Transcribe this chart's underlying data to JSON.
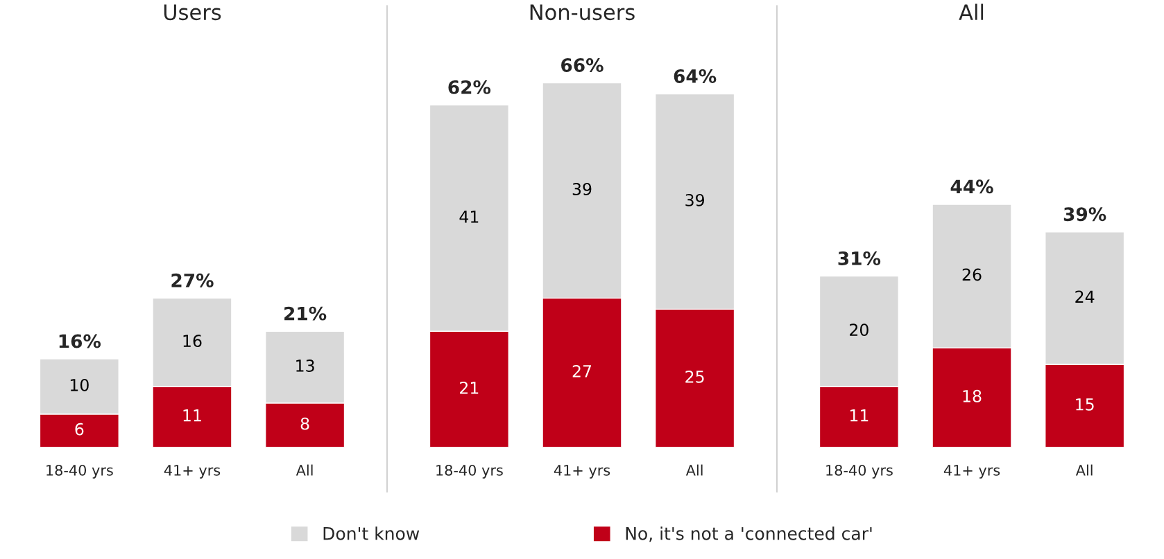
{
  "chart_data": [
    {
      "type": "bar",
      "title": "Users",
      "categories": [
        "18-40 yrs",
        "41+ yrs",
        "All"
      ],
      "stacked": true,
      "data_labels": true,
      "totals": [
        "16%",
        "27%",
        "21%"
      ],
      "legend": "bottom",
      "series": [
        {
          "name": "No, it's not a 'connected car'",
          "color": "#c00018",
          "values": [
            6,
            11,
            8
          ]
        },
        {
          "name": "Don't know",
          "color": "#d9d9d9",
          "values": [
            10,
            16,
            13
          ]
        }
      ]
    },
    {
      "type": "bar",
      "title": "Non-users",
      "categories": [
        "18-40 yrs",
        "41+ yrs",
        "All"
      ],
      "stacked": true,
      "data_labels": true,
      "totals": [
        "62%",
        "66%",
        "64%"
      ],
      "legend": "bottom",
      "series": [
        {
          "name": "No, it's not a 'connected car'",
          "color": "#c00018",
          "values": [
            21,
            27,
            25
          ]
        },
        {
          "name": "Don't know",
          "color": "#d9d9d9",
          "values": [
            41,
            39,
            39
          ]
        }
      ]
    },
    {
      "type": "bar",
      "title": "All",
      "categories": [
        "18-40 yrs",
        "41+ yrs",
        "All"
      ],
      "stacked": true,
      "data_labels": true,
      "totals": [
        "31%",
        "44%",
        "39%"
      ],
      "legend": "bottom",
      "series": [
        {
          "name": "No, it's not a 'connected car'",
          "color": "#c00018",
          "values": [
            11,
            18,
            15
          ]
        },
        {
          "name": "Don't know",
          "color": "#d9d9d9",
          "values": [
            20,
            26,
            24
          ]
        }
      ]
    }
  ]
}
